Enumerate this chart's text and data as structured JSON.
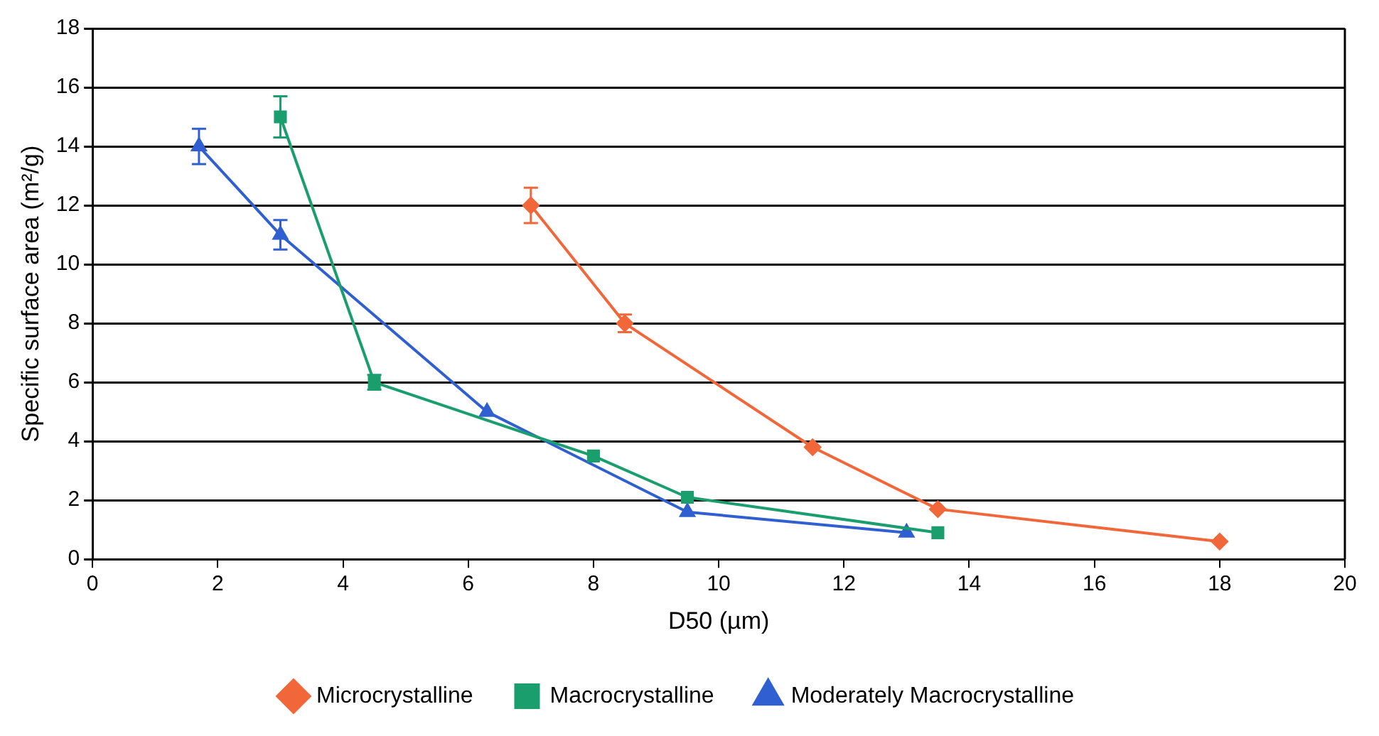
{
  "chart_data": {
    "type": "line",
    "xlabel": "D50 (µm)",
    "ylabel": "Specific surface area (m²/g)",
    "xlim": [
      0,
      20
    ],
    "xticks": [
      0,
      2,
      4,
      6,
      8,
      10,
      12,
      14,
      16,
      18,
      20
    ],
    "ylim": [
      0,
      18
    ],
    "yticks": [
      0,
      2,
      4,
      6,
      8,
      10,
      12,
      14,
      16,
      18
    ],
    "grid": "y",
    "legend": "bottom",
    "line_style": "solid",
    "series": [
      {
        "name": "Microcrystalline",
        "color": "#f2673a",
        "marker": "diamond",
        "x": [
          7,
          8.5,
          11.5,
          13.5,
          18
        ],
        "values": [
          12,
          8,
          3.8,
          1.7,
          0.6
        ],
        "errors": [
          0.6,
          0.3,
          null,
          null,
          null
        ]
      },
      {
        "name": "Macrocrystalline",
        "color": "#1a9e6e",
        "marker": "square",
        "x": [
          3,
          4.5,
          8,
          9.5,
          13.5
        ],
        "values": [
          15,
          6,
          3.5,
          2.1,
          0.9
        ],
        "errors": [
          0.7,
          0.25,
          null,
          null,
          null
        ]
      },
      {
        "name": "Moderately Macrocrystalline",
        "color": "#2f5fd0",
        "marker": "triangle",
        "x": [
          1.7,
          3,
          6.3,
          9.5,
          13
        ],
        "values": [
          14,
          11,
          5,
          1.6,
          0.9
        ],
        "errors": [
          0.6,
          0.5,
          null,
          null,
          null
        ]
      }
    ]
  }
}
